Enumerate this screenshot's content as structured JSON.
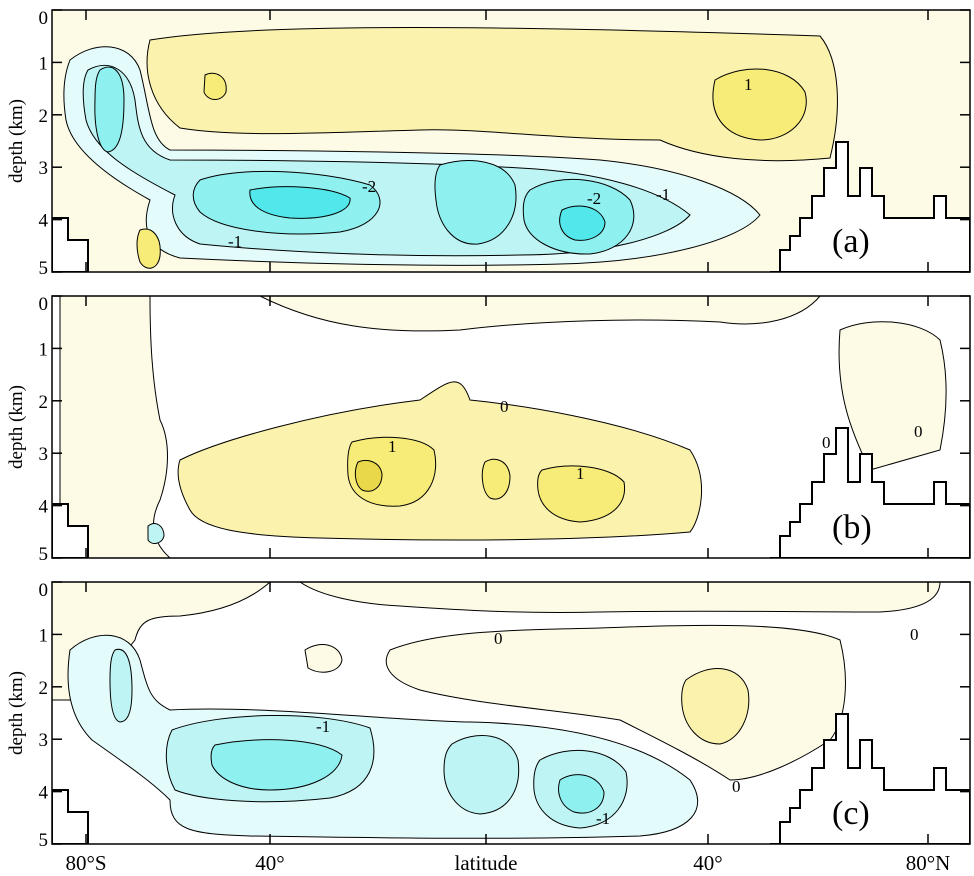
{
  "figure": {
    "xlabel": "latitude",
    "ylabel": "depth (km)",
    "colors": {
      "warm_light": "#fdfbe6",
      "warm_mid": "#fbf2ad",
      "warm_strong": "#f8ec78",
      "warm_peak": "#e8d84a",
      "cool_light": "#e4fbfb",
      "cool_mid": "#bff4f4",
      "cool_strong": "#8ff0f0",
      "cool_peak": "#52e7ea",
      "topography": "#ffffff",
      "contour": "#000000"
    }
  },
  "chart_data": [
    {
      "type": "contour",
      "panel_label": "(a)",
      "xlabel": "latitude",
      "ylabel": "depth (km)",
      "x_ticks": [
        "80°S",
        "40°",
        "40°",
        "80°N"
      ],
      "y_ticks": [
        "0",
        "1",
        "2",
        "3",
        "4",
        "5"
      ],
      "ylim": [
        5,
        0
      ],
      "contour_labels": [
        "1",
        "-2",
        "-2",
        "-1",
        "-1"
      ],
      "features": [
        {
          "sign": "positive",
          "lat_range": [
            -62,
            52
          ],
          "depth_range": [
            0.3,
            2.6
          ],
          "peak": 1
        },
        {
          "sign": "negative",
          "lat_range": [
            -75,
            48
          ],
          "depth_range": [
            2.8,
            4.8
          ],
          "peak": -3
        },
        {
          "sign": "negative",
          "lat_range": [
            -78,
            -68
          ],
          "depth_range": [
            0.5,
            3.5
          ],
          "peak": -2
        },
        {
          "sign": "positive",
          "lat_range": [
            -65,
            -62
          ],
          "depth_range": [
            4.2,
            4.9
          ],
          "peak": 2
        }
      ]
    },
    {
      "type": "contour",
      "panel_label": "(b)",
      "xlabel": "latitude",
      "ylabel": "depth (km)",
      "x_ticks": [
        "80°S",
        "40°",
        "40°",
        "80°N"
      ],
      "y_ticks": [
        "0",
        "1",
        "2",
        "3",
        "4",
        "5"
      ],
      "ylim": [
        5,
        0
      ],
      "contour_labels": [
        "0",
        "1",
        "1",
        "0",
        "0"
      ],
      "features": [
        {
          "sign": "positive",
          "lat_range": [
            -55,
            38
          ],
          "depth_range": [
            2.2,
            4.6
          ],
          "peak": 2
        },
        {
          "sign": "positive",
          "lat_range": [
            -78,
            -62
          ],
          "depth_range": [
            0.2,
            4.5
          ],
          "peak": 0.5
        },
        {
          "sign": "positive",
          "lat_range": [
            -40,
            30
          ],
          "depth_range": [
            0.0,
            0.8
          ],
          "peak": 0.5
        }
      ]
    },
    {
      "type": "contour",
      "panel_label": "(c)",
      "xlabel": "latitude",
      "ylabel": "depth (km)",
      "x_ticks": [
        "80°S",
        "40°",
        "40°",
        "80°N"
      ],
      "y_ticks": [
        "0",
        "1",
        "2",
        "3",
        "4",
        "5"
      ],
      "ylim": [
        5,
        0
      ],
      "contour_labels": [
        "0",
        "-1",
        "0",
        "0",
        "-1"
      ],
      "features": [
        {
          "sign": "negative",
          "lat_range": [
            -75,
            40
          ],
          "depth_range": [
            2.4,
            4.8
          ],
          "peak": -2
        },
        {
          "sign": "positive",
          "lat_range": [
            -10,
            58
          ],
          "depth_range": [
            0.6,
            3.8
          ],
          "peak": 1
        },
        {
          "sign": "negative",
          "lat_range": [
            -79,
            -67
          ],
          "depth_range": [
            0.8,
            3.2
          ],
          "peak": -1.5
        }
      ]
    }
  ]
}
